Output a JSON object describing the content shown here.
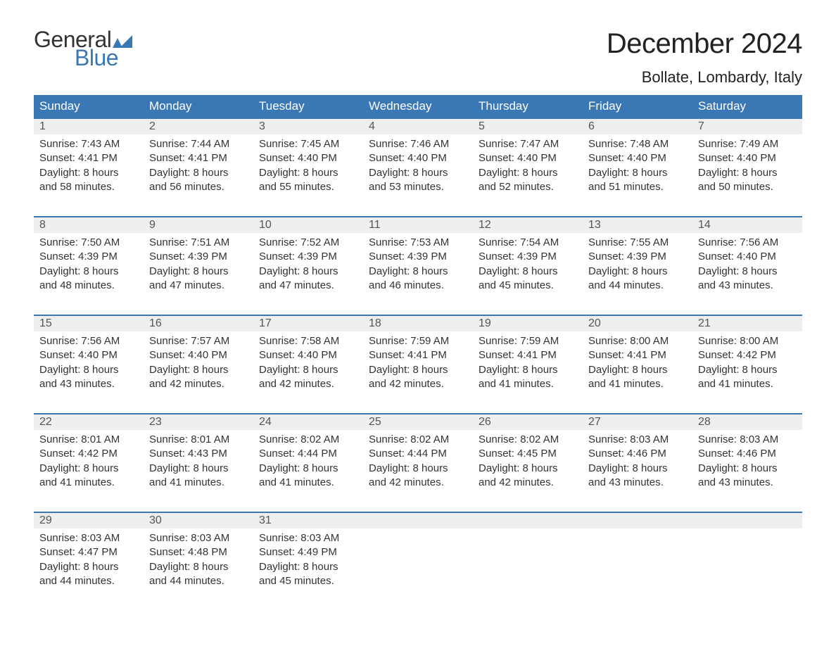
{
  "logo": {
    "word1": "General",
    "word2": "Blue",
    "accent_color": "#3a78b5"
  },
  "title": "December 2024",
  "location": "Bollate, Lombardy, Italy",
  "header_bg": "#3a78b5",
  "header_fg": "#ffffff",
  "daynum_bg": "#eeeeee",
  "border_color": "#3a78b5",
  "weekdays": [
    "Sunday",
    "Monday",
    "Tuesday",
    "Wednesday",
    "Thursday",
    "Friday",
    "Saturday"
  ],
  "weeks": [
    [
      {
        "n": "1",
        "sunrise": "Sunrise: 7:43 AM",
        "sunset": "Sunset: 4:41 PM",
        "d1": "Daylight: 8 hours",
        "d2": "and 58 minutes."
      },
      {
        "n": "2",
        "sunrise": "Sunrise: 7:44 AM",
        "sunset": "Sunset: 4:41 PM",
        "d1": "Daylight: 8 hours",
        "d2": "and 56 minutes."
      },
      {
        "n": "3",
        "sunrise": "Sunrise: 7:45 AM",
        "sunset": "Sunset: 4:40 PM",
        "d1": "Daylight: 8 hours",
        "d2": "and 55 minutes."
      },
      {
        "n": "4",
        "sunrise": "Sunrise: 7:46 AM",
        "sunset": "Sunset: 4:40 PM",
        "d1": "Daylight: 8 hours",
        "d2": "and 53 minutes."
      },
      {
        "n": "5",
        "sunrise": "Sunrise: 7:47 AM",
        "sunset": "Sunset: 4:40 PM",
        "d1": "Daylight: 8 hours",
        "d2": "and 52 minutes."
      },
      {
        "n": "6",
        "sunrise": "Sunrise: 7:48 AM",
        "sunset": "Sunset: 4:40 PM",
        "d1": "Daylight: 8 hours",
        "d2": "and 51 minutes."
      },
      {
        "n": "7",
        "sunrise": "Sunrise: 7:49 AM",
        "sunset": "Sunset: 4:40 PM",
        "d1": "Daylight: 8 hours",
        "d2": "and 50 minutes."
      }
    ],
    [
      {
        "n": "8",
        "sunrise": "Sunrise: 7:50 AM",
        "sunset": "Sunset: 4:39 PM",
        "d1": "Daylight: 8 hours",
        "d2": "and 48 minutes."
      },
      {
        "n": "9",
        "sunrise": "Sunrise: 7:51 AM",
        "sunset": "Sunset: 4:39 PM",
        "d1": "Daylight: 8 hours",
        "d2": "and 47 minutes."
      },
      {
        "n": "10",
        "sunrise": "Sunrise: 7:52 AM",
        "sunset": "Sunset: 4:39 PM",
        "d1": "Daylight: 8 hours",
        "d2": "and 47 minutes."
      },
      {
        "n": "11",
        "sunrise": "Sunrise: 7:53 AM",
        "sunset": "Sunset: 4:39 PM",
        "d1": "Daylight: 8 hours",
        "d2": "and 46 minutes."
      },
      {
        "n": "12",
        "sunrise": "Sunrise: 7:54 AM",
        "sunset": "Sunset: 4:39 PM",
        "d1": "Daylight: 8 hours",
        "d2": "and 45 minutes."
      },
      {
        "n": "13",
        "sunrise": "Sunrise: 7:55 AM",
        "sunset": "Sunset: 4:39 PM",
        "d1": "Daylight: 8 hours",
        "d2": "and 44 minutes."
      },
      {
        "n": "14",
        "sunrise": "Sunrise: 7:56 AM",
        "sunset": "Sunset: 4:40 PM",
        "d1": "Daylight: 8 hours",
        "d2": "and 43 minutes."
      }
    ],
    [
      {
        "n": "15",
        "sunrise": "Sunrise: 7:56 AM",
        "sunset": "Sunset: 4:40 PM",
        "d1": "Daylight: 8 hours",
        "d2": "and 43 minutes."
      },
      {
        "n": "16",
        "sunrise": "Sunrise: 7:57 AM",
        "sunset": "Sunset: 4:40 PM",
        "d1": "Daylight: 8 hours",
        "d2": "and 42 minutes."
      },
      {
        "n": "17",
        "sunrise": "Sunrise: 7:58 AM",
        "sunset": "Sunset: 4:40 PM",
        "d1": "Daylight: 8 hours",
        "d2": "and 42 minutes."
      },
      {
        "n": "18",
        "sunrise": "Sunrise: 7:59 AM",
        "sunset": "Sunset: 4:41 PM",
        "d1": "Daylight: 8 hours",
        "d2": "and 42 minutes."
      },
      {
        "n": "19",
        "sunrise": "Sunrise: 7:59 AM",
        "sunset": "Sunset: 4:41 PM",
        "d1": "Daylight: 8 hours",
        "d2": "and 41 minutes."
      },
      {
        "n": "20",
        "sunrise": "Sunrise: 8:00 AM",
        "sunset": "Sunset: 4:41 PM",
        "d1": "Daylight: 8 hours",
        "d2": "and 41 minutes."
      },
      {
        "n": "21",
        "sunrise": "Sunrise: 8:00 AM",
        "sunset": "Sunset: 4:42 PM",
        "d1": "Daylight: 8 hours",
        "d2": "and 41 minutes."
      }
    ],
    [
      {
        "n": "22",
        "sunrise": "Sunrise: 8:01 AM",
        "sunset": "Sunset: 4:42 PM",
        "d1": "Daylight: 8 hours",
        "d2": "and 41 minutes."
      },
      {
        "n": "23",
        "sunrise": "Sunrise: 8:01 AM",
        "sunset": "Sunset: 4:43 PM",
        "d1": "Daylight: 8 hours",
        "d2": "and 41 minutes."
      },
      {
        "n": "24",
        "sunrise": "Sunrise: 8:02 AM",
        "sunset": "Sunset: 4:44 PM",
        "d1": "Daylight: 8 hours",
        "d2": "and 41 minutes."
      },
      {
        "n": "25",
        "sunrise": "Sunrise: 8:02 AM",
        "sunset": "Sunset: 4:44 PM",
        "d1": "Daylight: 8 hours",
        "d2": "and 42 minutes."
      },
      {
        "n": "26",
        "sunrise": "Sunrise: 8:02 AM",
        "sunset": "Sunset: 4:45 PM",
        "d1": "Daylight: 8 hours",
        "d2": "and 42 minutes."
      },
      {
        "n": "27",
        "sunrise": "Sunrise: 8:03 AM",
        "sunset": "Sunset: 4:46 PM",
        "d1": "Daylight: 8 hours",
        "d2": "and 43 minutes."
      },
      {
        "n": "28",
        "sunrise": "Sunrise: 8:03 AM",
        "sunset": "Sunset: 4:46 PM",
        "d1": "Daylight: 8 hours",
        "d2": "and 43 minutes."
      }
    ],
    [
      {
        "n": "29",
        "sunrise": "Sunrise: 8:03 AM",
        "sunset": "Sunset: 4:47 PM",
        "d1": "Daylight: 8 hours",
        "d2": "and 44 minutes."
      },
      {
        "n": "30",
        "sunrise": "Sunrise: 8:03 AM",
        "sunset": "Sunset: 4:48 PM",
        "d1": "Daylight: 8 hours",
        "d2": "and 44 minutes."
      },
      {
        "n": "31",
        "sunrise": "Sunrise: 8:03 AM",
        "sunset": "Sunset: 4:49 PM",
        "d1": "Daylight: 8 hours",
        "d2": "and 45 minutes."
      },
      null,
      null,
      null,
      null
    ]
  ]
}
